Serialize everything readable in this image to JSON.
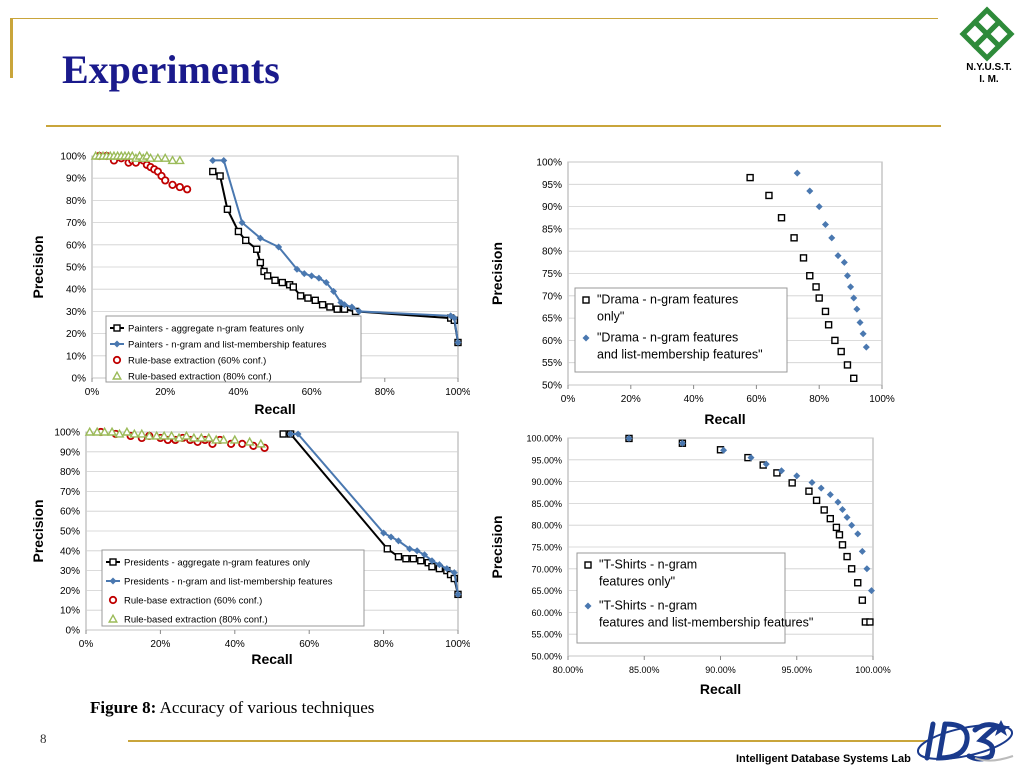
{
  "slide": {
    "title": "Experiments",
    "logo_text": [
      "N.Y.U.S.T.",
      "I. M."
    ],
    "caption_label": "Figure 8:",
    "caption_text": "Accuracy of various techniques",
    "page_number": "8",
    "footer": "Intelligent Database Systems Lab",
    "accent_color": "#c9a53b",
    "title_color": "#1a1a8c"
  },
  "chart_data": [
    {
      "type": "scatter",
      "xlabel": "Recall",
      "ylabel": "Precision",
      "xlim": [
        0,
        1
      ],
      "ylim": [
        0,
        1
      ],
      "xticks": [
        0,
        0.2,
        0.4,
        0.6,
        0.8,
        1.0
      ],
      "yticks": [
        0,
        0.1,
        0.2,
        0.3,
        0.4,
        0.5,
        0.6,
        0.7,
        0.8,
        0.9,
        1.0
      ],
      "tick_format": "pct0",
      "grid": true,
      "legend": "bottom-left",
      "series": [
        {
          "name": "Painters - aggregate n-gram features only",
          "marker": "square-line",
          "color": "#000000",
          "x": [
            0.33,
            0.35,
            0.37,
            0.4,
            0.42,
            0.45,
            0.46,
            0.47,
            0.48,
            0.5,
            0.52,
            0.54,
            0.55,
            0.57,
            0.59,
            0.61,
            0.63,
            0.65,
            0.67,
            0.69,
            0.72,
            0.98,
            0.99,
            1.0
          ],
          "y": [
            0.93,
            0.91,
            0.76,
            0.66,
            0.62,
            0.58,
            0.52,
            0.48,
            0.46,
            0.44,
            0.43,
            0.42,
            0.41,
            0.37,
            0.36,
            0.35,
            0.33,
            0.32,
            0.31,
            0.31,
            0.3,
            0.27,
            0.26,
            0.16
          ]
        },
        {
          "name": "Painters - n-gram and list-membership features",
          "marker": "diamond-line",
          "color": "#4a78b0",
          "x": [
            0.33,
            0.36,
            0.41,
            0.46,
            0.51,
            0.56,
            0.58,
            0.6,
            0.62,
            0.64,
            0.66,
            0.68,
            0.69,
            0.71,
            0.73,
            0.98,
            0.99,
            1.0
          ],
          "y": [
            0.98,
            0.98,
            0.7,
            0.63,
            0.59,
            0.49,
            0.47,
            0.46,
            0.45,
            0.43,
            0.39,
            0.34,
            0.33,
            0.32,
            0.3,
            0.28,
            0.27,
            0.16
          ]
        },
        {
          "name": "Rule-base extraction (60% conf.)",
          "marker": "circle",
          "color": "#c00000",
          "x": [
            0.02,
            0.04,
            0.06,
            0.08,
            0.1,
            0.11,
            0.12,
            0.14,
            0.15,
            0.16,
            0.17,
            0.18,
            0.19,
            0.2,
            0.22,
            0.24,
            0.26
          ],
          "y": [
            1.0,
            1.0,
            0.98,
            0.99,
            0.97,
            0.98,
            0.97,
            0.98,
            0.96,
            0.95,
            0.94,
            0.93,
            0.91,
            0.89,
            0.87,
            0.86,
            0.85
          ]
        },
        {
          "name": "Rule-based extraction (80% conf.)",
          "marker": "triangle",
          "color": "#9bbb59",
          "x": [
            0.01,
            0.02,
            0.03,
            0.04,
            0.05,
            0.06,
            0.07,
            0.08,
            0.09,
            0.1,
            0.11,
            0.12,
            0.13,
            0.14,
            0.15,
            0.16,
            0.18,
            0.2,
            0.22,
            0.24
          ],
          "y": [
            1.0,
            1.0,
            1.0,
            1.0,
            1.0,
            1.0,
            1.0,
            1.0,
            1.0,
            1.0,
            1.0,
            0.99,
            1.0,
            0.99,
            1.0,
            0.99,
            0.99,
            0.99,
            0.98,
            0.98
          ]
        }
      ]
    },
    {
      "type": "scatter",
      "xlabel": "Recall",
      "ylabel": "Precision",
      "xlim": [
        0,
        1
      ],
      "ylim": [
        0.5,
        1
      ],
      "xticks": [
        0,
        0.2,
        0.4,
        0.6,
        0.8,
        1.0
      ],
      "yticks": [
        0.5,
        0.55,
        0.6,
        0.65,
        0.7,
        0.75,
        0.8,
        0.85,
        0.9,
        0.95,
        1.0
      ],
      "tick_format": "pct0",
      "grid": true,
      "legend": "center-left",
      "series": [
        {
          "name": "\"Drama - n-gram features only\"",
          "marker": "square",
          "color": "#000000",
          "x": [
            0.58,
            0.64,
            0.68,
            0.72,
            0.75,
            0.77,
            0.79,
            0.8,
            0.82,
            0.83,
            0.85,
            0.87,
            0.89,
            0.91
          ],
          "y": [
            0.965,
            0.925,
            0.875,
            0.83,
            0.785,
            0.745,
            0.72,
            0.695,
            0.665,
            0.635,
            0.6,
            0.575,
            0.545,
            0.515
          ]
        },
        {
          "name": "\"Drama - n-gram features and list-membership features\"",
          "marker": "diamond",
          "color": "#4a78b0",
          "x": [
            0.73,
            0.77,
            0.8,
            0.82,
            0.84,
            0.86,
            0.88,
            0.89,
            0.9,
            0.91,
            0.92,
            0.93,
            0.94,
            0.95
          ],
          "y": [
            0.975,
            0.935,
            0.9,
            0.86,
            0.83,
            0.79,
            0.775,
            0.745,
            0.72,
            0.695,
            0.67,
            0.64,
            0.615,
            0.585
          ]
        }
      ]
    },
    {
      "type": "scatter",
      "xlabel": "Recall",
      "ylabel": "Precision",
      "xlim": [
        0,
        1
      ],
      "ylim": [
        0,
        1
      ],
      "xticks": [
        0,
        0.2,
        0.4,
        0.6,
        0.8,
        1.0
      ],
      "yticks": [
        0,
        0.1,
        0.2,
        0.3,
        0.4,
        0.5,
        0.6,
        0.7,
        0.8,
        0.9,
        1.0
      ],
      "tick_format": "pct0",
      "grid": true,
      "legend": "bottom-left",
      "series": [
        {
          "name": "Presidents - aggregate n-gram features only",
          "marker": "square-line",
          "color": "#000000",
          "x": [
            0.53,
            0.55,
            0.81,
            0.84,
            0.86,
            0.88,
            0.9,
            0.92,
            0.93,
            0.95,
            0.97,
            0.98,
            0.99,
            1.0
          ],
          "y": [
            0.99,
            0.99,
            0.41,
            0.37,
            0.36,
            0.36,
            0.35,
            0.34,
            0.32,
            0.31,
            0.3,
            0.28,
            0.26,
            0.18
          ]
        },
        {
          "name": "Presidents - n-gram and list-membership features",
          "marker": "diamond-line",
          "color": "#4a78b0",
          "x": [
            0.55,
            0.57,
            0.8,
            0.82,
            0.84,
            0.87,
            0.89,
            0.91,
            0.93,
            0.95,
            0.97,
            0.99,
            1.0
          ],
          "y": [
            0.99,
            0.99,
            0.49,
            0.47,
            0.45,
            0.41,
            0.4,
            0.38,
            0.35,
            0.33,
            0.31,
            0.29,
            0.18
          ]
        },
        {
          "name": "Rule-base extraction (60% conf.)",
          "marker": "circle",
          "color": "#c00000",
          "x": [
            0.04,
            0.08,
            0.12,
            0.15,
            0.17,
            0.2,
            0.22,
            0.24,
            0.26,
            0.28,
            0.3,
            0.32,
            0.34,
            0.36,
            0.39,
            0.42,
            0.45,
            0.48
          ],
          "y": [
            1.0,
            0.99,
            0.98,
            0.97,
            0.98,
            0.97,
            0.96,
            0.96,
            0.97,
            0.96,
            0.95,
            0.96,
            0.94,
            0.96,
            0.94,
            0.94,
            0.93,
            0.92
          ]
        },
        {
          "name": "Rule-based extraction (80% conf.)",
          "marker": "triangle",
          "color": "#9bbb59",
          "x": [
            0.01,
            0.03,
            0.05,
            0.07,
            0.09,
            0.11,
            0.13,
            0.15,
            0.17,
            0.19,
            0.21,
            0.23,
            0.25,
            0.27,
            0.29,
            0.31,
            0.33,
            0.35,
            0.37,
            0.4,
            0.44,
            0.47
          ],
          "y": [
            1.0,
            1.0,
            1.0,
            1.0,
            0.99,
            1.0,
            0.99,
            0.99,
            0.98,
            0.98,
            0.98,
            0.98,
            0.97,
            0.98,
            0.97,
            0.97,
            0.97,
            0.96,
            0.96,
            0.96,
            0.95,
            0.94
          ]
        }
      ]
    },
    {
      "type": "scatter",
      "xlabel": "Recall",
      "ylabel": "Precision",
      "xlim": [
        0.8,
        1
      ],
      "ylim": [
        0.5,
        1
      ],
      "xticks": [
        0.8,
        0.85,
        0.9,
        0.95,
        1.0
      ],
      "yticks": [
        0.5,
        0.55,
        0.6,
        0.65,
        0.7,
        0.75,
        0.8,
        0.85,
        0.9,
        0.95,
        1.0
      ],
      "tick_format": "pct2",
      "grid": true,
      "legend": "bottom-left",
      "series": [
        {
          "name": "\"T-Shirts - n-gram features only\"",
          "marker": "square",
          "color": "#000000",
          "x": [
            0.84,
            0.875,
            0.9,
            0.918,
            0.928,
            0.937,
            0.947,
            0.958,
            0.963,
            0.968,
            0.972,
            0.976,
            0.978,
            0.98,
            0.983,
            0.986,
            0.99,
            0.993,
            0.995,
            0.998
          ],
          "y": [
            0.999,
            0.988,
            0.973,
            0.955,
            0.938,
            0.92,
            0.897,
            0.878,
            0.857,
            0.835,
            0.815,
            0.795,
            0.778,
            0.755,
            0.728,
            0.7,
            0.668,
            0.628,
            0.578,
            0.578
          ]
        },
        {
          "name": "\"T-Shirts - n-gram features and list-membership features\"",
          "marker": "diamond",
          "color": "#4a78b0",
          "x": [
            0.84,
            0.875,
            0.902,
            0.92,
            0.93,
            0.94,
            0.95,
            0.96,
            0.966,
            0.972,
            0.977,
            0.98,
            0.983,
            0.986,
            0.99,
            0.993,
            0.996,
            0.999
          ],
          "y": [
            0.999,
            0.988,
            0.972,
            0.955,
            0.94,
            0.925,
            0.913,
            0.898,
            0.885,
            0.87,
            0.853,
            0.836,
            0.818,
            0.8,
            0.78,
            0.74,
            0.7,
            0.65
          ]
        }
      ]
    }
  ]
}
